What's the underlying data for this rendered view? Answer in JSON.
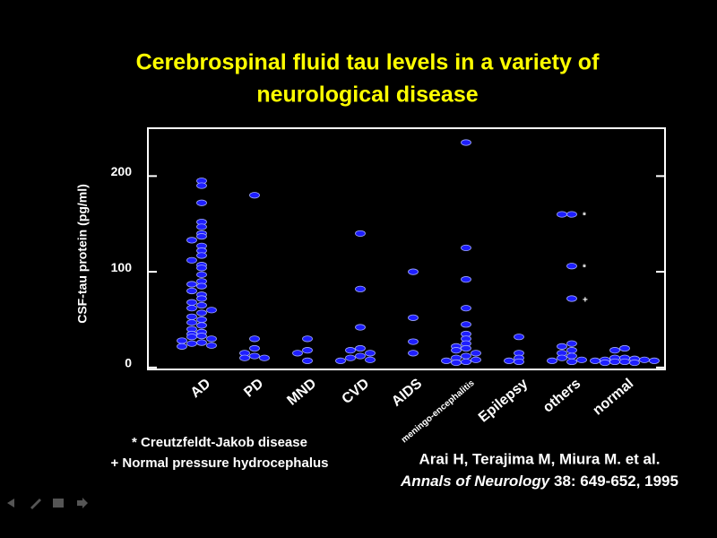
{
  "chart_data": {
    "type": "strip",
    "title": [
      "Cerebrospinal fluid tau levels in a variety of",
      "neurological disease"
    ],
    "y_label": "CSF-tau protein (pg/ml)",
    "categories": [
      "AD",
      "PD",
      "MND",
      "CVD",
      "AIDS",
      "meningo-encephalitis",
      "Epilepsy",
      "others",
      "normal"
    ],
    "values": [
      [
        195,
        190,
        172,
        152,
        147,
        140,
        137,
        133,
        127,
        122,
        117,
        112,
        107,
        104,
        97,
        90,
        87,
        85,
        80,
        76,
        72,
        68,
        65,
        62,
        60,
        57,
        53,
        50,
        47,
        44,
        40,
        37,
        35,
        33,
        32,
        30,
        28,
        26,
        25,
        23,
        22
      ],
      [
        180,
        30,
        20,
        15,
        12,
        10,
        10
      ],
      [
        30,
        18,
        15,
        7
      ],
      [
        140,
        82,
        42,
        20,
        18,
        15,
        12,
        10,
        8,
        7
      ],
      [
        100,
        52,
        27,
        15
      ],
      [
        235,
        125,
        92,
        62,
        45,
        35,
        30,
        25,
        22,
        20,
        18,
        15,
        12,
        10,
        8,
        7,
        6,
        5
      ],
      [
        32,
        15,
        10,
        7,
        6
      ],
      [
        160,
        160,
        106,
        72,
        25,
        22,
        18,
        15,
        12,
        10,
        8,
        7,
        6
      ],
      [
        20,
        18,
        10,
        10,
        9,
        8,
        8,
        7,
        7,
        6,
        6,
        5,
        5
      ]
    ],
    "point_notes": [
      {
        "category": 7,
        "value": 160,
        "text": "*"
      },
      {
        "category": 7,
        "value": 106,
        "text": "*"
      },
      {
        "category": 7,
        "value": 72,
        "text": "+"
      }
    ],
    "color": "#1e1eff",
    "ylim": [
      -2,
      250
    ],
    "yticks": [
      0,
      100,
      200
    ],
    "footnotes": [
      "* Creutzfeldt-Jakob disease",
      "+ Normal pressure hydrocephalus"
    ],
    "citation": {
      "authors": "Arai H, Terajima M, Miura M. et al.",
      "journal": "Annals of Neurology",
      "details": "38: 649-652, 1995"
    }
  }
}
